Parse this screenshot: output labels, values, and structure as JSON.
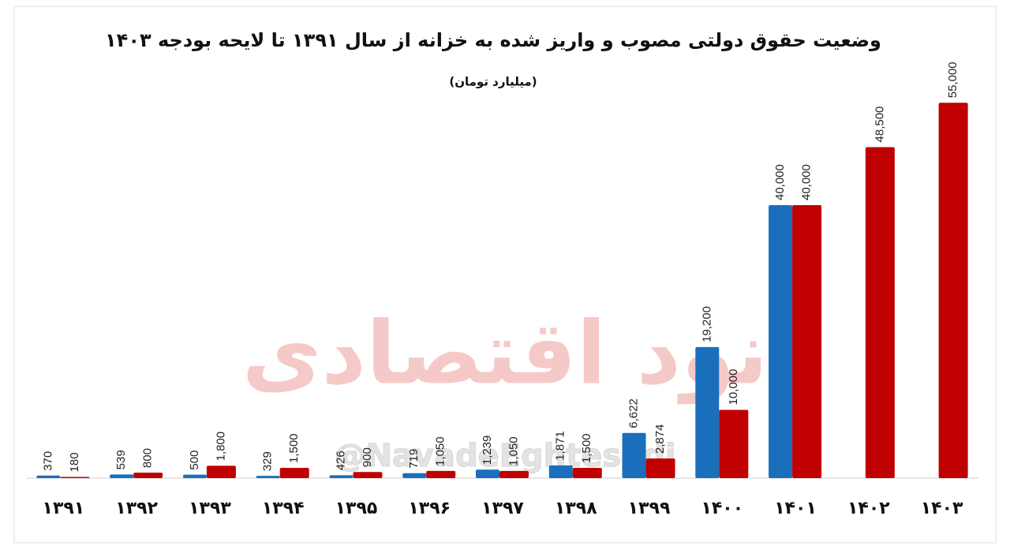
{
  "chart_data": {
    "type": "bar",
    "title": "وضعیت حقوق دولتی مصوب و واریز شده به خزانه از سال ۱۳۹۱ تا لایحه بودجه ۱۴۰۳",
    "subtitle": "(میلیارد تومان)",
    "watermark_text": "نود اقتصادی",
    "watermark_handle": "@NavadeEghtesadi",
    "categories": [
      "۱۳۹۱",
      "۱۳۹۲",
      "۱۳۹۳",
      "۱۳۹۴",
      "۱۳۹۵",
      "۱۳۹۶",
      "۱۳۹۷",
      "۱۳۹۸",
      "۱۳۹۹",
      "۱۴۰۰",
      "۱۴۰۱",
      "۱۴۰۲",
      "۱۴۰۳"
    ],
    "series": [
      {
        "color": "#1a6fbd",
        "values": [
          370,
          539,
          500,
          329,
          426,
          719,
          1239,
          1871,
          6622,
          19200,
          40000,
          null,
          null
        ],
        "value_labels": [
          "370",
          "539",
          "500",
          "329",
          "426",
          "719",
          "1,239",
          "1,871",
          "6,622",
          "19,200",
          "40,000",
          null,
          null
        ]
      },
      {
        "color": "#c00000",
        "values": [
          180,
          800,
          1800,
          1500,
          900,
          1050,
          1050,
          1500,
          2874,
          10000,
          40000,
          48500,
          55000
        ],
        "value_labels": [
          "180",
          "800",
          "1,800",
          "1,500",
          "900",
          "1,050",
          "1,050",
          "1,500",
          "2,874",
          "10,000",
          "40,000",
          "48,500",
          "55,000"
        ]
      }
    ],
    "ylim": [
      0,
      60000
    ]
  }
}
